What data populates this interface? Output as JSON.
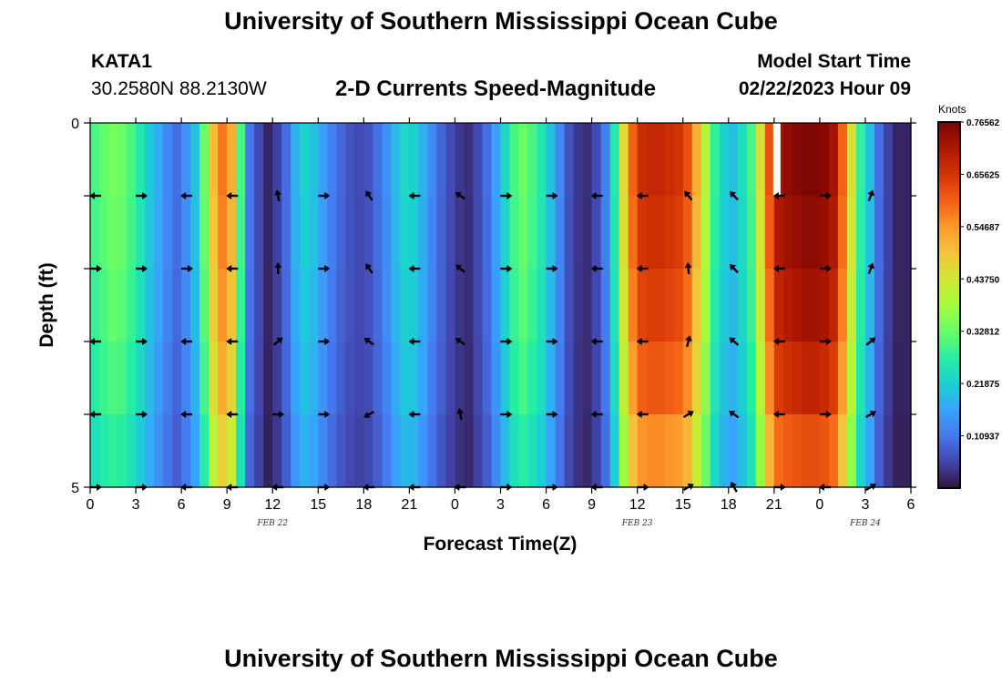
{
  "header": {
    "title": "University of Southern Mississippi Ocean Cube",
    "station": "KATA1",
    "coords": "30.2580N  88.2130W",
    "subtitle": "2-D Currents Speed-Magnitude",
    "model_start_label": "Model Start Time",
    "model_start_value": "02/22/2023 Hour 09"
  },
  "footer": {
    "title": "University of Southern Mississippi Ocean Cube"
  },
  "colors": {
    "background": "#ffffff",
    "axis": "#000000",
    "arrow": "#000000",
    "missing_data": "#ffffff"
  },
  "chart_data": {
    "type": "heatmap",
    "title": "2-D Currents Speed-Magnitude",
    "xlabel": "Forecast Time(Z)",
    "ylabel": "Depth (ft)",
    "x_ticks": [
      "0",
      "3",
      "6",
      "9",
      "12",
      "15",
      "18",
      "21",
      "0",
      "3",
      "6",
      "9",
      "12",
      "15",
      "18",
      "21",
      "0",
      "3",
      "6"
    ],
    "x_range": [
      0,
      54
    ],
    "x_units": "hours from FEB 22 00Z",
    "date_labels": [
      {
        "label": "FEB 22",
        "hour": 12
      },
      {
        "label": "FEB 23",
        "hour": 36
      },
      {
        "label": "FEB 24",
        "hour": 51
      }
    ],
    "y_ticks": [
      "0",
      "5"
    ],
    "y_range": [
      0,
      5
    ],
    "depth_levels_ft": [
      0,
      1,
      2,
      3,
      4,
      5
    ],
    "colorbar": {
      "label": "Knots",
      "min": 0,
      "max": 0.765625,
      "tick_labels": [
        "0.10937",
        "0.21875",
        "0.32812",
        "0.43750",
        "0.54687",
        "0.65625",
        "0.76562"
      ],
      "tick_values": [
        0.109375,
        0.21875,
        0.328125,
        0.4375,
        0.546875,
        0.65625,
        0.765625
      ]
    },
    "speed_profile_knots": [
      0.3,
      0.32,
      0.34,
      0.33,
      0.3,
      0.26,
      0.21,
      0.17,
      0.13,
      0.1,
      0.14,
      0.2,
      0.33,
      0.5,
      0.58,
      0.52,
      0.3,
      0.11,
      0.06,
      0.02,
      0.05,
      0.1,
      0.18,
      0.22,
      0.2,
      0.16,
      0.12,
      0.09,
      0.07,
      0.06,
      0.07,
      0.1,
      0.14,
      0.19,
      0.23,
      0.22,
      0.18,
      0.13,
      0.09,
      0.06,
      0.04,
      0.03,
      0.06,
      0.1,
      0.16,
      0.23,
      0.3,
      0.33,
      0.3,
      0.26,
      0.2,
      0.13,
      0.07,
      0.04,
      0.03,
      0.06,
      0.12,
      0.26,
      0.46,
      0.6,
      0.67,
      0.68,
      0.68,
      0.67,
      0.66,
      0.62,
      0.52,
      0.4,
      0.28,
      0.22,
      0.2,
      0.24,
      0.3,
      0.45,
      0.62,
      0.72,
      0.74,
      0.75,
      0.76,
      0.76,
      0.75,
      0.72,
      0.6,
      0.45,
      0.28,
      0.2,
      0.1,
      0.05,
      0.02,
      0.02
    ],
    "depth_factors": [
      1.0,
      0.98,
      0.95,
      0.9,
      0.82,
      0.7
    ],
    "missing_cell": {
      "hour": 45,
      "depth_row": 0
    },
    "arrow_times_hours": [
      0,
      3,
      6,
      9,
      12,
      15,
      18,
      21,
      24,
      27,
      30,
      33,
      36,
      39,
      42,
      45,
      48,
      51
    ],
    "arrow_depth_rows": [
      1,
      2,
      3,
      4,
      5
    ],
    "arrow_directions_deg": [
      [
        180,
        0,
        180,
        180,
        100,
        0,
        125,
        180,
        145,
        0,
        0,
        180,
        180,
        130,
        135,
        180,
        0,
        70
      ],
      [
        0,
        0,
        0,
        180,
        90,
        0,
        125,
        180,
        140,
        0,
        0,
        180,
        180,
        95,
        135,
        180,
        0,
        70
      ],
      [
        180,
        0,
        180,
        180,
        40,
        0,
        145,
        180,
        145,
        0,
        0,
        180,
        180,
        75,
        140,
        180,
        0,
        40
      ],
      [
        180,
        0,
        180,
        180,
        0,
        0,
        210,
        180,
        100,
        0,
        0,
        180,
        180,
        30,
        145,
        180,
        0,
        30
      ],
      [
        0,
        0,
        180,
        180,
        180,
        0,
        180,
        180,
        180,
        0,
        0,
        180,
        0,
        30,
        120,
        0,
        180,
        30
      ]
    ]
  }
}
